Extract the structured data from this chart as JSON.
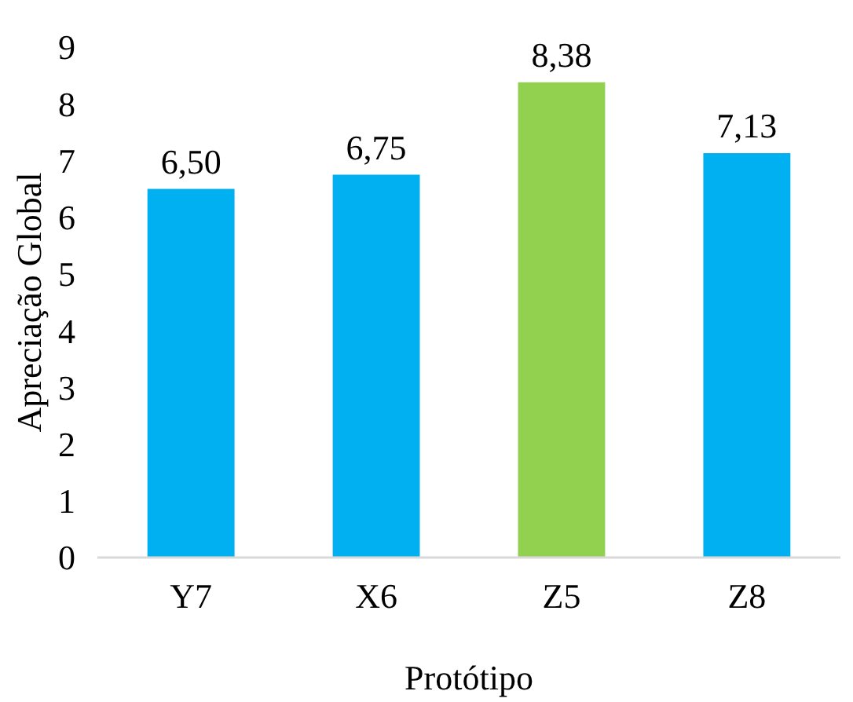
{
  "chart_data": {
    "type": "bar",
    "xlabel": "Protótipo",
    "ylabel": "Apreciação Global",
    "categories": [
      "Y7",
      "X6",
      "Z5",
      "Z8"
    ],
    "values": [
      6.5,
      6.75,
      8.38,
      7.13
    ],
    "colors": [
      "#00b0f0",
      "#00b0f0",
      "#92d050",
      "#00b0f0"
    ],
    "value_labels": [
      "6,50",
      "6,75",
      "8,38",
      "7,13"
    ],
    "ylim": [
      0,
      9
    ],
    "yticks": [
      0,
      1,
      2,
      3,
      4,
      5,
      6,
      7,
      8,
      9
    ],
    "grid": false
  }
}
